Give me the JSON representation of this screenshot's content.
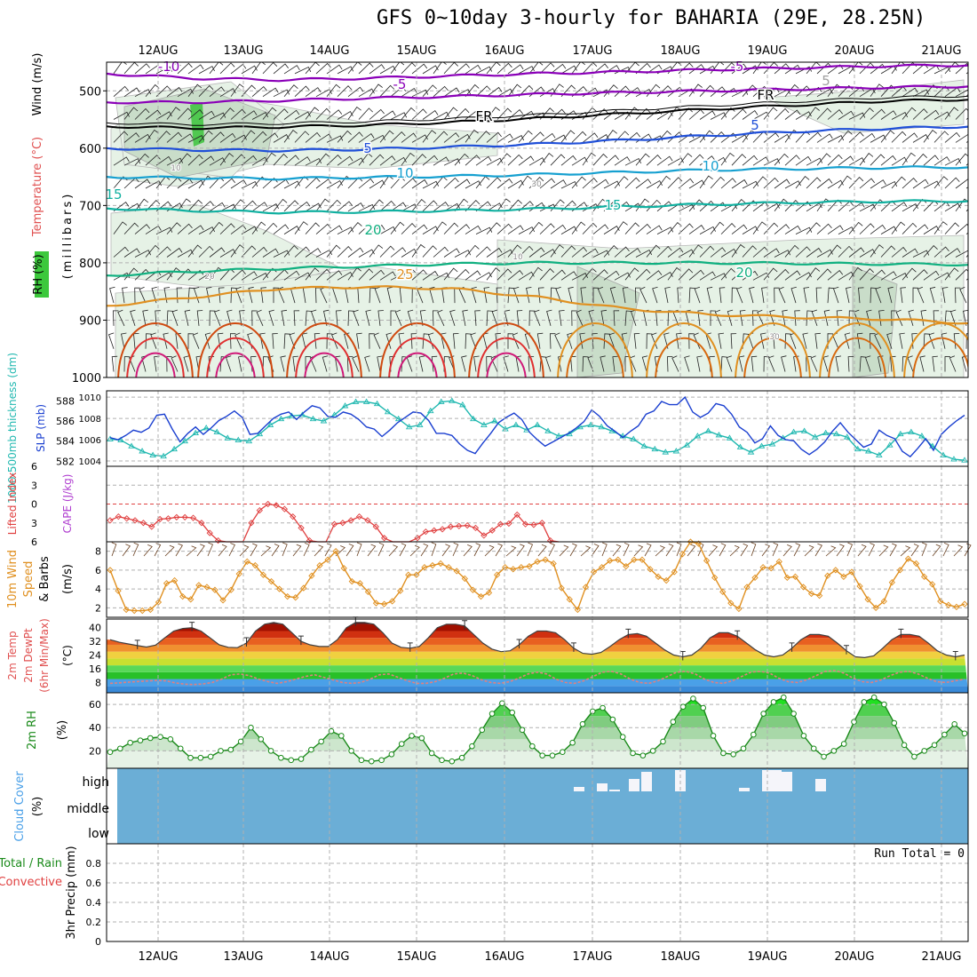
{
  "page": {
    "title": "GFS 0~10day 3-hourly for BAHARIA (29E, 28.25N)"
  },
  "chart_data": [
    {
      "panel": "upper_air",
      "type": "contour",
      "x_dates": [
        "12AUG",
        "13AUG",
        "14AUG",
        "15AUG",
        "16AUG",
        "17AUG",
        "18AUG",
        "19AUG",
        "20AUG",
        "21AUG"
      ],
      "ylabels": [
        "Temperature (°C)",
        "Wind (m/s)",
        "(millibars)",
        "RH (%)"
      ],
      "pressure_ticks": [
        500,
        600,
        700,
        800,
        900,
        1000
      ],
      "ylim": [
        450,
        1000
      ],
      "isotherms": [
        {
          "label": "-10",
          "color": "#8a00b8",
          "pressure": [
            470,
            478,
            481,
            478,
            474,
            470,
            467,
            463,
            460,
            457,
            455
          ]
        },
        {
          "label": "-5",
          "color": "#8a00b8",
          "pressure": [
            520,
            520,
            517,
            513,
            510,
            506,
            503,
            500,
            497,
            494,
            492
          ]
        },
        {
          "label": "FR",
          "color": "#000000",
          "pressure": [
            562,
            565,
            563,
            560,
            555,
            548,
            540,
            532,
            525,
            518,
            515
          ]
        },
        {
          "label": "5",
          "color": "#1f4fd8",
          "pressure": [
            600,
            603,
            604,
            602,
            598,
            593,
            586,
            578,
            571,
            566,
            562
          ]
        },
        {
          "label": "10",
          "color": "#16a0d0",
          "pressure": [
            650,
            652,
            653,
            651,
            649,
            646,
            642,
            638,
            636,
            634,
            633
          ]
        },
        {
          "label": "15",
          "color": "#10b0a0",
          "pressure": [
            705,
            709,
            712,
            711,
            709,
            706,
            702,
            698,
            695,
            693,
            692
          ]
        },
        {
          "label": "20",
          "color": "#10b080",
          "pressure": [
            822,
            815,
            810,
            806,
            802,
            800,
            800,
            800,
            801,
            802,
            803
          ]
        },
        {
          "label": "25",
          "color": "#e09020",
          "pressure": [
            875,
            860,
            845,
            842,
            845,
            860,
            880,
            890,
            895,
            898,
            905
          ]
        }
      ],
      "contour_labels": [
        "-10",
        "-5",
        "FR",
        "5",
        "10",
        "15",
        "20",
        "25",
        "-5",
        "FR",
        "5",
        "10",
        "15",
        "20",
        "5",
        "10",
        "20",
        "30",
        "30",
        "10"
      ]
    },
    {
      "panel": "thickness_slp",
      "type": "line",
      "ylabel_left": "1000-500mb thickness (dm)",
      "ylabel_right": "SLP (mb)",
      "left_ticks": [
        582,
        584,
        586,
        588
      ],
      "right_ticks": [
        1004,
        1006,
        1008,
        1010
      ],
      "ylim_left": [
        581.5,
        589
      ],
      "ylim_right": [
        1003.5,
        1010.6
      ],
      "series": [
        {
          "name": "1000-500mb thickness",
          "color": "#20b8b0",
          "axis": "left",
          "values": [
            584.2,
            584.1,
            583.5,
            583.0,
            582.6,
            582.5,
            583.2,
            584.0,
            584.8,
            585.3,
            584.9,
            584.3,
            584.1,
            584.0,
            584.7,
            585.6,
            586.2,
            586.5,
            586.6,
            586.2,
            586.0,
            586.6,
            587.5,
            587.9,
            587.9,
            587.7,
            586.9,
            586.2,
            585.4,
            585.6,
            587.0,
            587.9,
            588.0,
            587.6,
            586.2,
            585.6,
            586.0,
            585.2,
            585.6,
            585.1,
            585.6,
            585.0,
            584.5,
            584.7,
            585.4,
            585.6,
            585.4,
            585.0,
            584.5,
            584.2,
            583.5,
            583.2,
            582.9,
            583.0,
            583.6,
            584.5,
            585.0,
            584.6,
            584.3,
            583.4,
            582.9,
            583.5,
            583.7,
            584.3,
            584.9,
            585.0,
            584.4,
            584.8,
            584.7,
            584.4,
            583.2,
            583.0,
            582.6,
            583.6,
            584.7,
            584.9,
            584.5,
            583.5,
            582.6,
            582.2,
            582.1
          ]
        },
        {
          "name": "SLP",
          "color": "#1a3fd0",
          "axis": "right",
          "values": [
            1006.2,
            1006.0,
            1006.4,
            1006.9,
            1006.7,
            1007.1,
            1008.3,
            1008.4,
            1007.0,
            1005.8,
            1006.6,
            1007.2,
            1006.5,
            1007.1,
            1007.8,
            1008.2,
            1008.7,
            1008.1,
            1006.5,
            1006.6,
            1007.3,
            1008.0,
            1008.4,
            1008.6,
            1007.9,
            1008.6,
            1009.2,
            1009.0,
            1008.2,
            1008.1,
            1008.6,
            1008.4,
            1007.9,
            1007.2,
            1007.0,
            1006.3,
            1006.9,
            1007.6,
            1008.1,
            1008.6,
            1008.5,
            1007.8,
            1006.6,
            1006.6,
            1006.4,
            1005.6,
            1005.0,
            1004.7,
            1005.7,
            1006.6,
            1007.6,
            1008.1,
            1008.5,
            1007.9,
            1006.7,
            1006.0,
            1005.4,
            1005.8,
            1006.2,
            1006.6,
            1007.1,
            1007.7,
            1008.8,
            1008.2,
            1007.3,
            1006.8,
            1006.2,
            1006.8,
            1007.3,
            1008.4,
            1008.7,
            1009.6,
            1009.3,
            1009.3,
            1010.0,
            1008.6,
            1008.1,
            1008.5,
            1009.4,
            1009.2,
            1008.4,
            1007.2,
            1006.7,
            1005.7,
            1006.1,
            1007.3,
            1006.4,
            1006.0,
            1005.9,
            1005.1,
            1004.6,
            1005.1,
            1005.8,
            1006.8,
            1007.6,
            1006.7,
            1006.0,
            1005.3,
            1005.6,
            1006.9,
            1006.4,
            1006.1,
            1004.9,
            1004.4,
            1005.2,
            1006.1,
            1005.0,
            1006.5,
            1007.2,
            1007.8,
            1008.3
          ]
        }
      ]
    },
    {
      "panel": "stability",
      "type": "line",
      "ylabel_left": "Lifted Index",
      "ylabel_right": "CAPE (J/kg)",
      "ticks": [
        -6,
        -3,
        0,
        3,
        6
      ],
      "tick_labels": [
        "6",
        "3",
        "0",
        "3",
        "6"
      ],
      "ylim": [
        -6,
        6
      ],
      "series": [
        {
          "name": "Lifted Index",
          "color": "#e04040",
          "values": [
            2.6,
            2.0,
            2.3,
            2.6,
            3.0,
            3.6,
            2.4,
            2.3,
            2.1,
            2.1,
            2.2,
            3.0,
            4.6,
            5.8,
            6.3,
            6.5,
            6.5,
            3.0,
            1.0,
            0.0,
            0.2,
            0.8,
            2.0,
            3.8,
            5.8,
            6.0,
            6.0,
            3.2,
            3.0,
            2.6,
            2.0,
            2.6,
            3.6,
            5.4,
            6.2,
            6.4,
            6.2,
            5.4,
            4.4,
            4.2,
            4.0,
            3.6,
            3.5,
            3.4,
            3.8,
            5.0,
            4.2,
            3.2,
            3.1,
            1.7,
            3.2,
            3.3,
            3.0,
            5.8,
            6.5
          ]
        },
        {
          "name": "CAPE",
          "color": "#b040d0",
          "values": []
        }
      ],
      "reference_line": {
        "value": 0,
        "color": "#e04040",
        "style": "dashed"
      }
    },
    {
      "panel": "wind10m",
      "type": "line",
      "ylabel": "10m Wind Speed & Barbs (m/s)",
      "ticks": [
        2,
        4,
        6,
        8
      ],
      "ylim": [
        1,
        9
      ],
      "series": [
        {
          "name": "10m wind speed",
          "color": "#e09020",
          "values": [
            6.0,
            3.8,
            1.8,
            1.7,
            1.7,
            1.8,
            2.6,
            4.6,
            4.9,
            3.2,
            2.9,
            4.4,
            4.2,
            3.9,
            2.8,
            3.9,
            5.6,
            6.9,
            6.5,
            5.5,
            4.8,
            4.0,
            3.2,
            3.1,
            4.1,
            5.4,
            6.5,
            7.1,
            8.0,
            6.2,
            4.8,
            4.6,
            3.7,
            2.5,
            2.4,
            2.7,
            3.8,
            5.5,
            5.5,
            6.3,
            6.5,
            6.7,
            6.3,
            5.9,
            5.1,
            3.9,
            3.2,
            3.6,
            5.5,
            6.3,
            6.1,
            6.3,
            6.4,
            6.9,
            7.1,
            6.7,
            4.1,
            2.9,
            1.8,
            4.2,
            5.8,
            6.3,
            7.0,
            7.1,
            6.4,
            7.1,
            7.1,
            6.1,
            5.3,
            4.9,
            5.8,
            7.7,
            9.0,
            8.8,
            7.0,
            5.2,
            3.7,
            2.5,
            1.9,
            4.2,
            5.2,
            6.3,
            6.2,
            6.9,
            5.2,
            5.3,
            4.2,
            3.5,
            3.3,
            5.4,
            6.0,
            5.3,
            5.8,
            4.3,
            2.9,
            2.0,
            2.7,
            4.7,
            6.0,
            7.2,
            6.7,
            5.3,
            4.5,
            2.7,
            2.3,
            2.1,
            2.4
          ]
        }
      ]
    },
    {
      "panel": "temp2m",
      "type": "area",
      "ylabel": "2m Temp 2m DewPt (6hr Min/Max) (°C)",
      "ticks": [
        8,
        16,
        24,
        32,
        40
      ],
      "ylim": [
        2,
        45
      ],
      "series": [
        {
          "name": "2m temperature",
          "color": "#404040",
          "values": [
            33.0,
            31.5,
            30.5,
            29.5,
            28.7,
            29.8,
            34.0,
            38.0,
            39.5,
            40.0,
            38.0,
            34.0,
            30.0,
            28.5,
            28.3,
            31.0,
            38.0,
            42.0,
            43.0,
            42.0,
            37.0,
            32.0,
            30.0,
            29.0,
            29.0,
            33.0,
            40.0,
            43.0,
            43.0,
            42.0,
            37.0,
            31.0,
            28.5,
            28.0,
            29.0,
            34.0,
            40.0,
            42.0,
            42.0,
            41.0,
            36.0,
            31.0,
            27.5,
            26.0,
            26.5,
            30.0,
            35.0,
            38.0,
            38.0,
            37.0,
            33.0,
            28.0,
            25.0,
            24.5,
            25.5,
            29.0,
            33.0,
            36.0,
            36.5,
            35.0,
            31.0,
            27.0,
            24.0,
            23.0,
            24.0,
            28.0,
            34.0,
            37.0,
            37.0,
            35.0,
            31.0,
            27.0,
            24.0,
            23.0,
            24.0,
            28.0,
            33.0,
            36.0,
            36.0,
            35.0,
            31.0,
            26.5,
            23.0,
            22.5,
            23.5,
            28.0,
            33.0,
            36.0,
            36.0,
            35.0,
            31.0,
            26.5,
            24.0,
            23.0,
            24.0
          ]
        },
        {
          "name": "2m dewpoint",
          "color": "#e08080",
          "values": [
            7.5,
            7.8,
            8.2,
            8.6,
            8.9,
            9.2,
            9.0,
            7.8,
            7.0,
            6.8,
            7.2,
            8.0,
            10.0,
            12.5,
            13.0,
            12.0,
            10.0,
            8.5,
            7.5,
            8.5,
            10.0,
            11.5,
            12.5,
            11.0,
            9.5,
            8.0,
            7.5,
            8.0,
            10.0,
            12.5,
            13.0,
            11.0,
            9.0,
            7.5,
            7.5,
            8.5,
            10.5,
            13.0,
            13.5,
            12.0,
            9.5,
            8.0,
            7.5,
            8.5,
            10.5,
            13.0,
            14.0,
            13.0,
            10.0,
            8.0,
            7.5,
            9.0,
            11.5,
            14.0,
            14.5,
            13.0,
            10.0,
            8.0,
            7.5,
            9.0,
            11.5,
            14.0,
            14.5,
            13.0,
            10.0,
            8.0,
            7.5,
            9.0,
            11.5,
            14.0,
            14.5,
            13.5,
            10.5,
            8.5,
            8.0,
            9.5,
            12.0,
            14.5,
            15.0,
            13.5,
            10.5,
            8.5,
            8.0,
            9.5,
            12.0,
            14.0,
            14.5,
            13.0,
            10.5,
            8.5,
            8.0,
            9.0,
            10.0
          ]
        }
      ]
    },
    {
      "panel": "rh2m",
      "type": "area",
      "ylabel": "2m RH (%)",
      "ticks": [
        20,
        40,
        60
      ],
      "ylim": [
        5,
        70
      ],
      "series": [
        {
          "name": "2m RH",
          "color": "#1a8a1a",
          "values": [
            19,
            22,
            27,
            29,
            31,
            32,
            30,
            22,
            14,
            14,
            15,
            20,
            21,
            28,
            40,
            30,
            20,
            14,
            12,
            13,
            21,
            28,
            37,
            33,
            20,
            12,
            11,
            12,
            17,
            26,
            33,
            31,
            18,
            12,
            11,
            14,
            24,
            38,
            52,
            61,
            53,
            38,
            24,
            16,
            16,
            19,
            27,
            43,
            54,
            57,
            47,
            32,
            18,
            16,
            20,
            28,
            45,
            58,
            65,
            57,
            33,
            18,
            17,
            22,
            34,
            52,
            62,
            66,
            52,
            33,
            22,
            15,
            20,
            26,
            45,
            62,
            66,
            60,
            44,
            25,
            15,
            20,
            25,
            34,
            43,
            35
          ]
        }
      ]
    },
    {
      "panel": "cloud_cover",
      "type": "bar",
      "ylabel": "Cloud Cover (%)",
      "levels": [
        "high",
        "middle",
        "low"
      ],
      "high_cloud_blocks": [
        5,
        9,
        2,
        14,
        22,
        36,
        4,
        38,
        30,
        22,
        14,
        10,
        2,
        8
      ]
    },
    {
      "panel": "precip",
      "type": "bar",
      "ylabel_prefix": "Total / Rain",
      "ylabel_convective": "Convective",
      "ylabel": "3hr Precip (mm)",
      "ticks": [
        0,
        0.2,
        0.4,
        0.6,
        0.8
      ],
      "ylim": [
        0,
        1
      ],
      "run_total_label": "Run Total = 0",
      "values": []
    }
  ]
}
